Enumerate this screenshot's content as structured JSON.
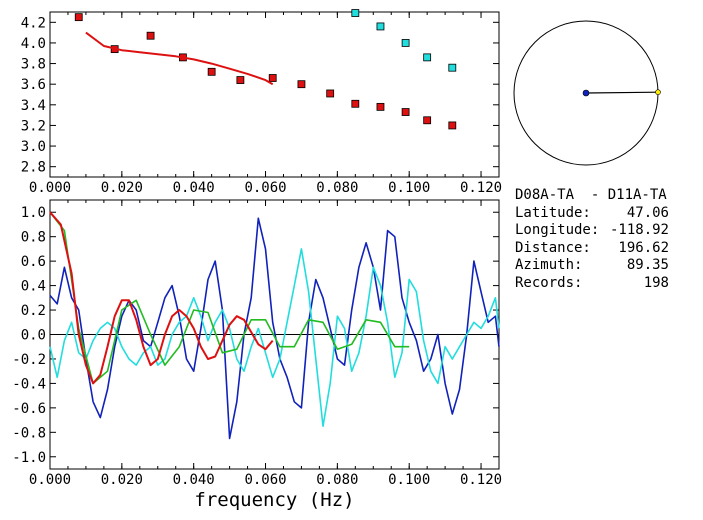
{
  "chart_data": [
    {
      "type": "scatter",
      "xlim": [
        0.0,
        0.125
      ],
      "ylim": [
        2.7,
        4.3
      ],
      "x_ticks": [
        "0.000",
        "0.020",
        "0.040",
        "0.060",
        "0.080",
        "0.100",
        "0.120"
      ],
      "y_ticks": [
        "2.8",
        "3.0",
        "3.2",
        "3.4",
        "3.6",
        "3.8",
        "4.0",
        "4.2"
      ],
      "series": [
        {
          "kind": "points",
          "color": "#dd1111",
          "points": [
            [
              0.008,
              4.25
            ],
            [
              0.018,
              3.94
            ],
            [
              0.028,
              4.07
            ],
            [
              0.037,
              3.86
            ],
            [
              0.045,
              3.72
            ],
            [
              0.053,
              3.64
            ],
            [
              0.062,
              3.66
            ],
            [
              0.07,
              3.6
            ],
            [
              0.078,
              3.51
            ],
            [
              0.085,
              3.41
            ],
            [
              0.092,
              3.38
            ],
            [
              0.099,
              3.33
            ],
            [
              0.105,
              3.25
            ],
            [
              0.112,
              3.2
            ]
          ]
        },
        {
          "kind": "points",
          "color": "#22dddd",
          "points": [
            [
              0.085,
              4.29
            ],
            [
              0.092,
              4.16
            ],
            [
              0.099,
              4.0
            ],
            [
              0.105,
              3.86
            ],
            [
              0.112,
              3.76
            ]
          ]
        },
        {
          "kind": "line",
          "color": "#dd1111",
          "points": [
            [
              0.01,
              4.1
            ],
            [
              0.015,
              3.97
            ],
            [
              0.02,
              3.93
            ],
            [
              0.025,
              3.91
            ],
            [
              0.03,
              3.89
            ],
            [
              0.035,
              3.87
            ],
            [
              0.04,
              3.84
            ],
            [
              0.045,
              3.8
            ],
            [
              0.05,
              3.75
            ],
            [
              0.055,
              3.7
            ],
            [
              0.06,
              3.64
            ],
            [
              0.062,
              3.6
            ]
          ]
        }
      ]
    },
    {
      "type": "line",
      "xlabel": "frequency (Hz)",
      "xlim": [
        0.0,
        0.125
      ],
      "ylim": [
        -1.1,
        1.1
      ],
      "x_ticks": [
        "0.000",
        "0.020",
        "0.040",
        "0.060",
        "0.080",
        "0.100",
        "0.120"
      ],
      "y_ticks": [
        "1.0",
        "0.8",
        "0.6",
        "0.4",
        "0.2",
        "0.0",
        "-0.2",
        "-0.4",
        "-0.6",
        "-0.8",
        "-1.0"
      ],
      "zero_line": true,
      "series": [
        {
          "color": "#1122bb",
          "x": [
            0.0,
            0.002,
            0.004,
            0.006,
            0.008,
            0.01,
            0.012,
            0.014,
            0.016,
            0.018,
            0.02,
            0.022,
            0.024,
            0.026,
            0.028,
            0.03,
            0.032,
            0.034,
            0.036,
            0.038,
            0.04,
            0.042,
            0.044,
            0.046,
            0.048,
            0.05,
            0.052,
            0.054,
            0.056,
            0.058,
            0.06,
            0.062,
            0.064,
            0.066,
            0.068,
            0.07,
            0.072,
            0.074,
            0.076,
            0.078,
            0.08,
            0.082,
            0.084,
            0.086,
            0.088,
            0.09,
            0.092,
            0.094,
            0.096,
            0.098,
            0.1,
            0.102,
            0.104,
            0.106,
            0.108,
            0.11,
            0.112,
            0.114,
            0.116,
            0.118,
            0.12,
            0.122,
            0.124,
            0.125
          ],
          "y": [
            0.32,
            0.25,
            0.55,
            0.3,
            0.2,
            -0.2,
            -0.55,
            -0.68,
            -0.45,
            -0.1,
            0.15,
            0.28,
            0.2,
            -0.05,
            -0.1,
            0.1,
            0.3,
            0.4,
            0.15,
            -0.2,
            -0.3,
            0.05,
            0.45,
            0.6,
            0.2,
            -0.85,
            -0.55,
            0.0,
            0.3,
            0.95,
            0.7,
            0.1,
            -0.2,
            -0.35,
            -0.55,
            -0.6,
            0.1,
            0.45,
            0.3,
            0.05,
            -0.2,
            -0.25,
            0.2,
            0.55,
            0.75,
            0.55,
            0.2,
            0.85,
            0.8,
            0.3,
            0.1,
            -0.05,
            -0.3,
            -0.2,
            0.0,
            -0.4,
            -0.65,
            -0.45,
            0.0,
            0.6,
            0.35,
            0.1,
            0.15,
            -0.1
          ]
        },
        {
          "color": "#22dddd",
          "x": [
            0.0,
            0.002,
            0.004,
            0.006,
            0.008,
            0.01,
            0.012,
            0.014,
            0.016,
            0.018,
            0.02,
            0.022,
            0.024,
            0.026,
            0.028,
            0.03,
            0.032,
            0.034,
            0.036,
            0.038,
            0.04,
            0.042,
            0.044,
            0.046,
            0.048,
            0.05,
            0.052,
            0.054,
            0.056,
            0.058,
            0.06,
            0.062,
            0.064,
            0.066,
            0.068,
            0.07,
            0.072,
            0.074,
            0.076,
            0.078,
            0.08,
            0.082,
            0.084,
            0.086,
            0.088,
            0.09,
            0.092,
            0.094,
            0.096,
            0.098,
            0.1,
            0.102,
            0.104,
            0.106,
            0.108,
            0.11,
            0.112,
            0.114,
            0.116,
            0.118,
            0.12,
            0.122,
            0.124,
            0.125
          ],
          "y": [
            -0.1,
            -0.35,
            -0.05,
            0.1,
            -0.15,
            -0.2,
            -0.05,
            0.05,
            0.1,
            0.05,
            -0.1,
            -0.2,
            -0.25,
            -0.15,
            -0.1,
            -0.25,
            -0.2,
            0.0,
            0.1,
            0.15,
            0.3,
            0.15,
            -0.05,
            0.1,
            0.2,
            0.05,
            -0.2,
            -0.3,
            -0.1,
            0.05,
            -0.15,
            -0.35,
            -0.2,
            0.1,
            0.4,
            0.7,
            0.35,
            -0.2,
            -0.75,
            -0.4,
            0.15,
            0.05,
            -0.3,
            -0.15,
            0.15,
            0.55,
            0.4,
            0.1,
            -0.35,
            -0.15,
            0.45,
            0.35,
            -0.05,
            -0.3,
            -0.4,
            -0.1,
            -0.2,
            -0.1,
            0.0,
            0.1,
            0.05,
            0.15,
            0.3,
            0.05
          ]
        },
        {
          "color": "#22bb22",
          "x": [
            0.0,
            0.004,
            0.008,
            0.012,
            0.016,
            0.02,
            0.024,
            0.028,
            0.032,
            0.036,
            0.04,
            0.044,
            0.048,
            0.052,
            0.056,
            0.06,
            0.064,
            0.068,
            0.072,
            0.076,
            0.08,
            0.084,
            0.088,
            0.092,
            0.096,
            0.1
          ],
          "y": [
            1.0,
            0.85,
            0.05,
            -0.4,
            -0.3,
            0.2,
            0.28,
            0.0,
            -0.25,
            -0.1,
            0.2,
            0.18,
            -0.15,
            -0.12,
            0.12,
            0.12,
            -0.1,
            -0.1,
            0.12,
            0.1,
            -0.12,
            -0.08,
            0.12,
            0.1,
            -0.1,
            -0.1
          ]
        },
        {
          "color": "#dd1111",
          "x": [
            0.0,
            0.003,
            0.006,
            0.008,
            0.01,
            0.012,
            0.014,
            0.016,
            0.018,
            0.02,
            0.022,
            0.024,
            0.026,
            0.028,
            0.03,
            0.032,
            0.034,
            0.036,
            0.038,
            0.04,
            0.042,
            0.044,
            0.046,
            0.048,
            0.05,
            0.052,
            0.054,
            0.056,
            0.058,
            0.06,
            0.062
          ],
          "y": [
            1.0,
            0.9,
            0.5,
            0.0,
            -0.25,
            -0.4,
            -0.33,
            -0.1,
            0.15,
            0.28,
            0.28,
            0.12,
            -0.1,
            -0.25,
            -0.2,
            0.0,
            0.15,
            0.2,
            0.15,
            0.05,
            -0.1,
            -0.2,
            -0.18,
            -0.05,
            0.08,
            0.15,
            0.12,
            0.02,
            -0.08,
            -0.12,
            -0.05
          ]
        }
      ]
    },
    {
      "type": "polar",
      "azimuth_deg": 89.35,
      "circle": true
    }
  ],
  "info": {
    "title": "D08A-TA  - D11A-TA",
    "rows": [
      {
        "label": "Latitude:",
        "value": "47.06"
      },
      {
        "label": "Longitude:",
        "value": "-118.92"
      },
      {
        "label": "Distance:",
        "value": "196.62"
      },
      {
        "label": "Azimuth:",
        "value": "89.35"
      },
      {
        "label": "Records:",
        "value": "198"
      }
    ]
  }
}
